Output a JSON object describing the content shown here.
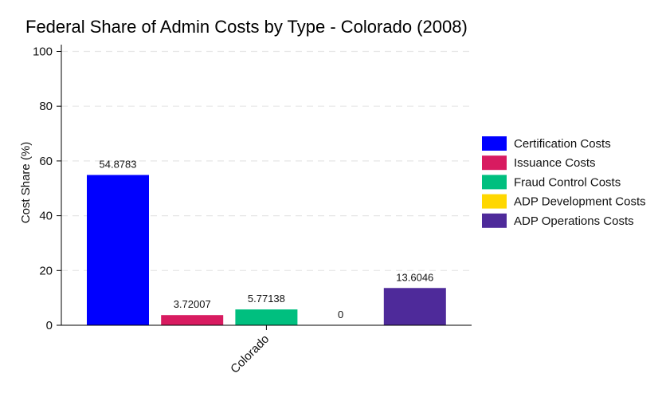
{
  "chart_data": {
    "type": "bar",
    "title": "Federal Share of Admin Costs by Type - Colorado (2008)",
    "xlabel": "",
    "ylabel": "Cost Share (%)",
    "categories": [
      "Colorado"
    ],
    "ylim": [
      0,
      100
    ],
    "yticks": [
      "0",
      "20",
      "40",
      "60",
      "80",
      "100"
    ],
    "grid": "horizontal dashed",
    "legend_position": "right",
    "series": [
      {
        "name": "Certification Costs",
        "values": [
          54.8783
        ],
        "label": "54.8783",
        "color": "#0000FF"
      },
      {
        "name": "Issuance Costs",
        "values": [
          3.72007
        ],
        "label": "3.72007",
        "color": "#D81B60"
      },
      {
        "name": "Fraud Control Costs",
        "values": [
          5.77138
        ],
        "label": "5.77138",
        "color": "#00BF7F"
      },
      {
        "name": "ADP Development Costs",
        "values": [
          0
        ],
        "label": "0",
        "color": "#FFD700"
      },
      {
        "name": "ADP Operations Costs",
        "values": [
          13.6046
        ],
        "label": "13.6046",
        "color": "#4E2A9A"
      }
    ]
  }
}
